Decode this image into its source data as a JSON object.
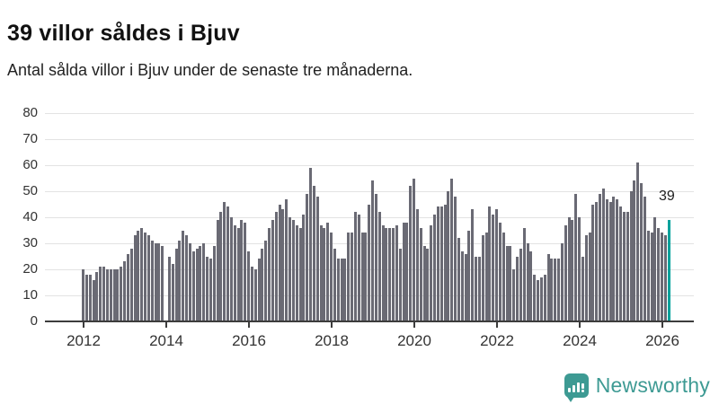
{
  "header": {
    "title": "39 villor såldes i Bjuv",
    "subtitle": "Antal sålda villor i Bjuv under de senaste tre månaderna."
  },
  "chart_data": {
    "type": "bar",
    "title": "39 villor såldes i Bjuv",
    "subtitle": "Antal sålda villor i Bjuv under de senaste tre månaderna.",
    "x_start_month": "2012-01",
    "x_end_month": "2026-03",
    "x_tick_labels": [
      "2012",
      "2014",
      "2016",
      "2018",
      "2020",
      "2022",
      "2024",
      "2026"
    ],
    "y_ticks": [
      0,
      10,
      20,
      30,
      40,
      50,
      60,
      70,
      80
    ],
    "ylim": [
      0,
      80
    ],
    "grid": "horizontal",
    "legend": "none",
    "values": [
      20,
      18,
      18,
      16,
      19,
      21,
      21,
      20,
      20,
      20,
      20,
      21,
      23,
      26,
      28,
      33,
      35,
      36,
      34,
      33,
      31,
      30,
      30,
      29,
      0,
      25,
      22,
      28,
      31,
      35,
      33,
      30,
      27,
      28,
      29,
      30,
      25,
      24,
      29,
      39,
      42,
      46,
      44,
      40,
      37,
      36,
      39,
      38,
      27,
      21,
      20,
      24,
      28,
      31,
      36,
      39,
      42,
      45,
      43,
      47,
      40,
      39,
      37,
      36,
      41,
      49,
      59,
      52,
      48,
      37,
      36,
      38,
      34,
      28,
      24,
      24,
      24,
      34,
      34,
      42,
      41,
      34,
      34,
      45,
      54,
      49,
      42,
      37,
      36,
      36,
      36,
      37,
      28,
      38,
      38,
      52,
      55,
      43,
      36,
      29,
      28,
      37,
      41,
      44,
      44,
      45,
      50,
      55,
      48,
      32,
      27,
      26,
      35,
      43,
      25,
      25,
      33,
      34,
      44,
      41,
      43,
      38,
      34,
      29,
      29,
      20,
      25,
      28,
      36,
      30,
      27,
      18,
      16,
      17,
      18,
      26,
      24,
      24,
      24,
      30,
      37,
      40,
      39,
      49,
      40,
      25,
      33,
      34,
      45,
      46,
      49,
      51,
      47,
      46,
      48,
      47,
      44,
      42,
      42,
      50,
      54,
      61,
      53,
      48,
      35,
      34,
      40,
      36,
      34,
      33,
      39
    ],
    "highlight_last_value": 39,
    "annotation": {
      "text": "39"
    },
    "colors": {
      "bar": "#6a6a74",
      "highlight": "#00a19b",
      "gridline": "#e3e3e3",
      "axis": "#3c3c3c"
    }
  },
  "annotation": {
    "label": "39"
  },
  "footer": {
    "brand": "Newsworthy",
    "brand_color": "#3d9a93"
  }
}
